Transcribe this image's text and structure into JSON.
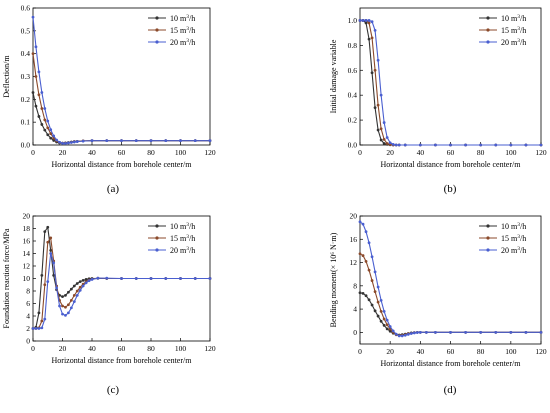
{
  "colors": {
    "s10": "#333333",
    "s15": "#8b4a2b",
    "s20": "#4a5fd0",
    "axis": "#000000"
  },
  "chart_data": [
    {
      "id": "a",
      "type": "line",
      "panel_label": "(a)",
      "xlabel": "Horizontal distance from borehole center/m",
      "ylabel": "Deflection/m",
      "xlim": [
        0,
        120
      ],
      "ylim": [
        0,
        0.6
      ],
      "xticks": [
        0,
        20,
        40,
        60,
        80,
        100,
        120
      ],
      "yticks": [
        0.0,
        0.1,
        0.2,
        0.3,
        0.4,
        0.5,
        0.6
      ],
      "ytick_labels": [
        "0.0",
        "0.1",
        "0.2",
        "0.3",
        "0.4",
        "0.5",
        "0.6"
      ],
      "legend_position": "top-right",
      "series": [
        {
          "name_main": "10 m",
          "name_sup": "3",
          "name_tail": "/h",
          "color_key": "s10",
          "x": [
            0,
            2,
            4,
            6,
            8,
            10,
            12,
            14,
            16,
            18,
            20,
            22,
            24,
            26,
            28,
            30,
            34,
            40,
            50,
            60,
            70,
            80,
            90,
            100,
            110,
            120
          ],
          "y": [
            0.23,
            0.17,
            0.125,
            0.09,
            0.065,
            0.045,
            0.03,
            0.02,
            0.013,
            0.009,
            0.008,
            0.009,
            0.011,
            0.013,
            0.015,
            0.016,
            0.018,
            0.019,
            0.019,
            0.019,
            0.019,
            0.019,
            0.019,
            0.019,
            0.019,
            0.019
          ]
        },
        {
          "name_main": "15 m",
          "name_sup": "3",
          "name_tail": "/h",
          "color_key": "s15",
          "x": [
            0,
            2,
            4,
            6,
            8,
            10,
            12,
            14,
            16,
            18,
            20,
            22,
            24,
            26,
            28,
            30,
            34,
            40,
            50,
            60,
            70,
            80,
            90,
            100,
            110,
            120
          ],
          "y": [
            0.4,
            0.3,
            0.22,
            0.16,
            0.11,
            0.075,
            0.05,
            0.03,
            0.018,
            0.011,
            0.008,
            0.008,
            0.01,
            0.012,
            0.014,
            0.016,
            0.018,
            0.019,
            0.019,
            0.019,
            0.019,
            0.019,
            0.019,
            0.019,
            0.019,
            0.019
          ]
        },
        {
          "name_main": "20 m",
          "name_sup": "3",
          "name_tail": "/h",
          "color_key": "s20",
          "x": [
            0,
            2,
            4,
            6,
            8,
            10,
            12,
            14,
            16,
            18,
            20,
            22,
            24,
            26,
            28,
            30,
            34,
            40,
            50,
            60,
            70,
            80,
            90,
            100,
            110,
            120
          ],
          "y": [
            0.56,
            0.43,
            0.32,
            0.23,
            0.16,
            0.105,
            0.067,
            0.04,
            0.022,
            0.012,
            0.007,
            0.007,
            0.009,
            0.011,
            0.013,
            0.015,
            0.017,
            0.019,
            0.019,
            0.019,
            0.019,
            0.019,
            0.019,
            0.019,
            0.019,
            0.019
          ]
        }
      ]
    },
    {
      "id": "b",
      "type": "line",
      "panel_label": "(b)",
      "xlabel": "Horizontal distance from borehole center/m",
      "ylabel": "Initial damage variable",
      "xlim": [
        0,
        120
      ],
      "ylim": [
        0,
        1.1
      ],
      "xticks": [
        0,
        20,
        40,
        60,
        80,
        100,
        120
      ],
      "yticks": [
        0.0,
        0.2,
        0.4,
        0.6,
        0.8,
        1.0
      ],
      "ytick_labels": [
        "0.0",
        "0.2",
        "0.4",
        "0.6",
        "0.8",
        "1.0"
      ],
      "legend_position": "top-right",
      "series": [
        {
          "name_main": "10 m",
          "name_sup": "3",
          "name_tail": "/h",
          "color_key": "s10",
          "x": [
            0,
            2,
            4,
            6,
            8,
            10,
            12,
            14,
            16,
            18,
            20,
            22,
            24,
            26,
            30,
            40,
            50,
            60,
            70,
            80,
            90,
            100,
            110,
            120
          ],
          "y": [
            1.0,
            1.0,
            0.98,
            0.85,
            0.58,
            0.3,
            0.12,
            0.04,
            0.012,
            0.005,
            0.002,
            0.0,
            0.0,
            0.0,
            0.0,
            0.0,
            0.0,
            0.0,
            0.0,
            0.0,
            0.0,
            0.0,
            0.0,
            0.0
          ]
        },
        {
          "name_main": "15 m",
          "name_sup": "3",
          "name_tail": "/h",
          "color_key": "s15",
          "x": [
            0,
            2,
            4,
            6,
            8,
            10,
            12,
            14,
            16,
            18,
            20,
            22,
            24,
            26,
            30,
            40,
            50,
            60,
            70,
            80,
            90,
            100,
            110,
            120
          ],
          "y": [
            1.0,
            1.0,
            1.0,
            0.98,
            0.86,
            0.6,
            0.32,
            0.13,
            0.045,
            0.012,
            0.004,
            0.0,
            0.0,
            0.0,
            0.0,
            0.0,
            0.0,
            0.0,
            0.0,
            0.0,
            0.0,
            0.0,
            0.0,
            0.0
          ]
        },
        {
          "name_main": "20 m",
          "name_sup": "3",
          "name_tail": "/h",
          "color_key": "s20",
          "x": [
            0,
            2,
            4,
            6,
            8,
            10,
            12,
            14,
            16,
            18,
            20,
            22,
            24,
            26,
            30,
            40,
            50,
            60,
            70,
            80,
            90,
            100,
            110,
            120
          ],
          "y": [
            1.0,
            1.0,
            1.0,
            1.0,
            0.99,
            0.92,
            0.68,
            0.4,
            0.18,
            0.06,
            0.018,
            0.005,
            0.0,
            0.0,
            0.0,
            0.0,
            0.0,
            0.0,
            0.0,
            0.0,
            0.0,
            0.0,
            0.0,
            0.0
          ]
        }
      ]
    },
    {
      "id": "c",
      "type": "line",
      "panel_label": "(c)",
      "xlabel": "Horizontal distance from borehole center/m",
      "ylabel": "Foundation reaction force/MPa",
      "xlim": [
        0,
        120
      ],
      "ylim": [
        0,
        20
      ],
      "xticks": [
        0,
        20,
        40,
        60,
        80,
        100,
        120
      ],
      "yticks": [
        0,
        2,
        4,
        6,
        8,
        10,
        12,
        14,
        16,
        18,
        20
      ],
      "ytick_labels": [
        "0",
        "2",
        "4",
        "6",
        "8",
        "10",
        "12",
        "14",
        "16",
        "18",
        "20"
      ],
      "legend_position": "top-right",
      "series": [
        {
          "name_main": "10 m",
          "name_sup": "3",
          "name_tail": "/h",
          "color_key": "s10",
          "x": [
            0,
            2,
            4,
            6,
            8,
            10,
            12,
            14,
            16,
            18,
            20,
            22,
            24,
            26,
            28,
            30,
            32,
            34,
            36,
            38,
            40,
            44,
            50,
            60,
            70,
            80,
            90,
            100,
            110,
            120
          ],
          "y": [
            2,
            2.2,
            4.5,
            10.5,
            17.5,
            18.2,
            14.5,
            10.5,
            8.2,
            7.3,
            7.1,
            7.3,
            7.8,
            8.3,
            8.8,
            9.2,
            9.5,
            9.7,
            9.85,
            9.95,
            10,
            10.02,
            10,
            10,
            10,
            10,
            10,
            10,
            10,
            10
          ]
        },
        {
          "name_main": "15 m",
          "name_sup": "3",
          "name_tail": "/h",
          "color_key": "s15",
          "x": [
            0,
            2,
            4,
            6,
            8,
            10,
            12,
            14,
            16,
            18,
            20,
            22,
            24,
            26,
            28,
            30,
            32,
            34,
            36,
            38,
            40,
            44,
            50,
            60,
            70,
            80,
            90,
            100,
            110,
            120
          ],
          "y": [
            2,
            2,
            2.1,
            3.2,
            9,
            15.8,
            16.5,
            12.8,
            8.8,
            6.5,
            5.6,
            5.4,
            5.8,
            6.5,
            7.3,
            8,
            8.6,
            9.1,
            9.5,
            9.75,
            9.9,
            10.05,
            10,
            10,
            10,
            10,
            10,
            10,
            10,
            10
          ]
        },
        {
          "name_main": "20 m",
          "name_sup": "3",
          "name_tail": "/h",
          "color_key": "s20",
          "x": [
            0,
            2,
            4,
            6,
            8,
            10,
            12,
            14,
            16,
            18,
            20,
            22,
            24,
            26,
            28,
            30,
            32,
            34,
            36,
            38,
            40,
            44,
            50,
            60,
            70,
            80,
            90,
            100,
            110,
            120
          ],
          "y": [
            2,
            2,
            2,
            2.1,
            3.5,
            9.5,
            14,
            12.5,
            8.5,
            5.6,
            4.3,
            4.1,
            4.5,
            5.3,
            6.3,
            7.3,
            8.1,
            8.8,
            9.3,
            9.65,
            9.85,
            10.05,
            10.05,
            10,
            10,
            10,
            10,
            10,
            10,
            10
          ]
        }
      ]
    },
    {
      "id": "d",
      "type": "line",
      "panel_label": "(d)",
      "xlabel": "Horizontal distance from borehole center/m",
      "ylabel": "Bending moment(× 10⁶ N·m)",
      "xlim": [
        0,
        120
      ],
      "ylim": [
        -2,
        20
      ],
      "xticks": [
        0,
        20,
        40,
        60,
        80,
        100,
        120
      ],
      "yticks": [
        0,
        4,
        8,
        12,
        16,
        20
      ],
      "ytick_labels": [
        "0",
        "4",
        "8",
        "12",
        "16",
        "20"
      ],
      "legend_position": "top-right",
      "series": [
        {
          "name_main": "10 m",
          "name_sup": "3",
          "name_tail": "/h",
          "color_key": "s10",
          "x": [
            0,
            2,
            4,
            6,
            8,
            10,
            12,
            14,
            16,
            18,
            20,
            22,
            24,
            26,
            28,
            30,
            32,
            34,
            36,
            38,
            40,
            44,
            50,
            60,
            70,
            80,
            90,
            100,
            110,
            120
          ],
          "y": [
            6.8,
            6.7,
            6.3,
            5.6,
            4.7,
            3.7,
            2.8,
            1.9,
            1.2,
            0.6,
            0.2,
            -0.15,
            -0.35,
            -0.45,
            -0.4,
            -0.3,
            -0.2,
            -0.1,
            -0.05,
            0,
            0,
            0,
            0,
            0,
            0,
            0,
            0,
            0,
            0,
            0
          ]
        },
        {
          "name_main": "15 m",
          "name_sup": "3",
          "name_tail": "/h",
          "color_key": "s15",
          "x": [
            0,
            2,
            4,
            6,
            8,
            10,
            12,
            14,
            16,
            18,
            20,
            22,
            24,
            26,
            28,
            30,
            32,
            34,
            36,
            38,
            40,
            44,
            50,
            60,
            70,
            80,
            90,
            100,
            110,
            120
          ],
          "y": [
            13.5,
            13.2,
            12.2,
            10.7,
            8.9,
            7,
            5.2,
            3.6,
            2.3,
            1.3,
            0.6,
            0,
            -0.4,
            -0.55,
            -0.5,
            -0.4,
            -0.25,
            -0.15,
            -0.05,
            0,
            0,
            0,
            0,
            0,
            0,
            0,
            0,
            0,
            0,
            0
          ]
        },
        {
          "name_main": "20 m",
          "name_sup": "3",
          "name_tail": "/h",
          "color_key": "s20",
          "x": [
            0,
            2,
            4,
            6,
            8,
            10,
            12,
            14,
            16,
            18,
            20,
            22,
            24,
            26,
            28,
            30,
            32,
            34,
            36,
            38,
            40,
            44,
            50,
            60,
            70,
            80,
            90,
            100,
            110,
            120
          ],
          "y": [
            19,
            18.6,
            17.3,
            15.4,
            13,
            10.4,
            7.8,
            5.5,
            3.6,
            2.1,
            1.0,
            0.25,
            -0.3,
            -0.6,
            -0.6,
            -0.5,
            -0.35,
            -0.2,
            -0.1,
            -0.03,
            0,
            0,
            0,
            0,
            0,
            0,
            0,
            0,
            0,
            0
          ]
        }
      ]
    }
  ]
}
